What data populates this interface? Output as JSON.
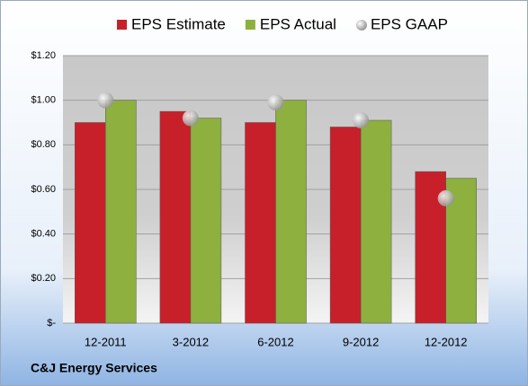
{
  "chart_data": {
    "type": "bar",
    "source": "C&J Energy Services",
    "categories": [
      "12-2011",
      "3-2012",
      "6-2012",
      "9-2012",
      "12-2012"
    ],
    "series": [
      {
        "name": "EPS Estimate",
        "color": "#c8202a",
        "values": [
          0.9,
          0.95,
          0.9,
          0.88,
          0.68
        ]
      },
      {
        "name": "EPS Actual",
        "color": "#8db03f",
        "values": [
          1.0,
          0.92,
          1.0,
          0.91,
          0.65
        ]
      },
      {
        "name": "EPS GAAP",
        "type": "scatter",
        "color": "#b8b8b8",
        "values": [
          1.0,
          0.92,
          0.99,
          0.91,
          0.56
        ]
      }
    ],
    "ylim": [
      0,
      1.2
    ],
    "yticks": [
      {
        "value": 0,
        "label": "$-"
      },
      {
        "value": 0.2,
        "label": "$0.20"
      },
      {
        "value": 0.4,
        "label": "$0.40"
      },
      {
        "value": 0.6,
        "label": "$0.60"
      },
      {
        "value": 0.8,
        "label": "$0.80"
      },
      {
        "value": 1.0,
        "label": "$1.00"
      },
      {
        "value": 1.2,
        "label": "$1.20"
      }
    ],
    "grid": true,
    "legend": "top"
  }
}
